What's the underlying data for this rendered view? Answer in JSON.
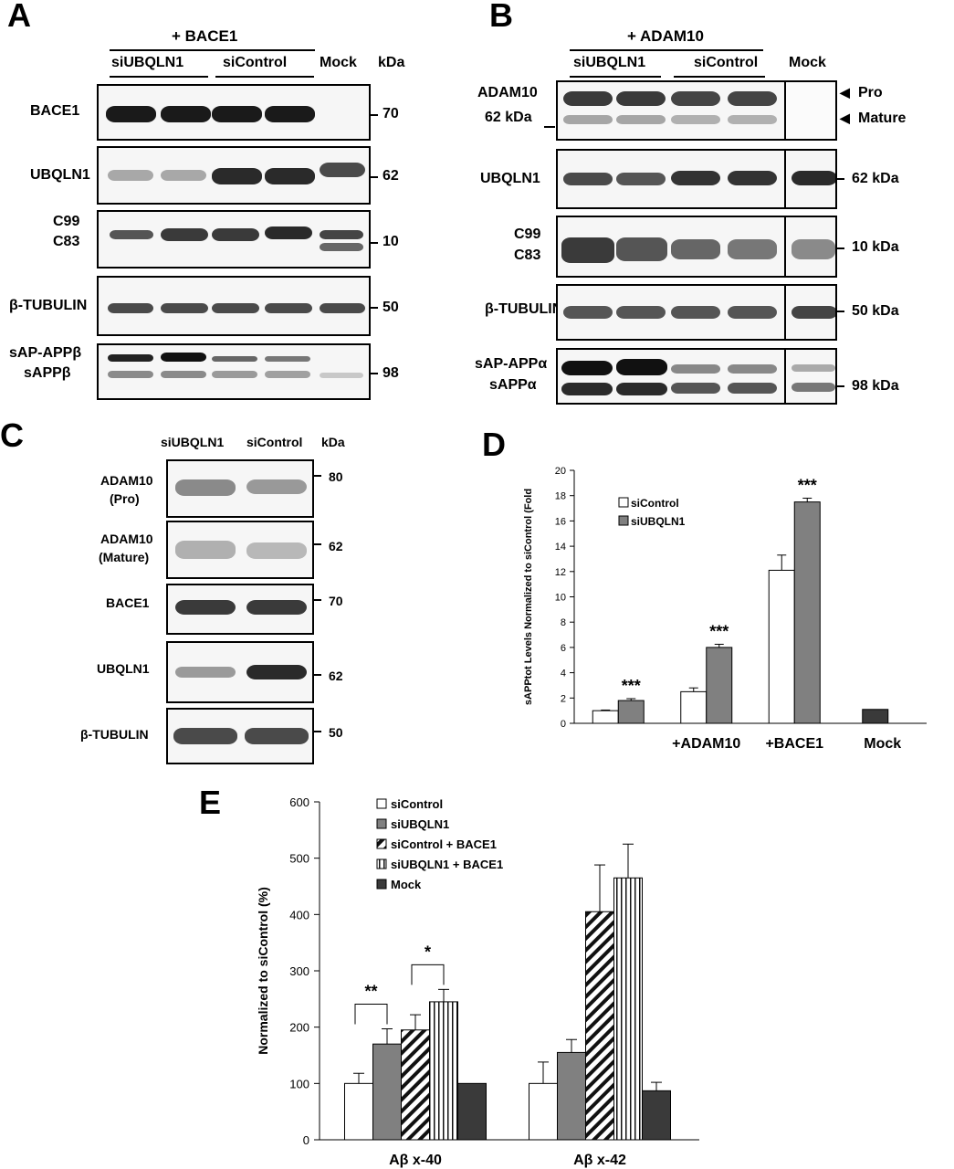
{
  "panel_letters": [
    "A",
    "B",
    "C",
    "D",
    "E"
  ],
  "panel_a": {
    "condition": "+ BACE1",
    "groups": [
      "siUBQLN1",
      "siControl",
      "Mock"
    ],
    "unit": "kDa",
    "rows": [
      {
        "label": "BACE1",
        "marker": "70"
      },
      {
        "label": "UBQLN1",
        "marker": "62"
      },
      {
        "label": "C99",
        "label2": "C83",
        "marker": "10"
      },
      {
        "label": "β-TUBULIN",
        "marker": "50"
      },
      {
        "label": "sAP-APPβ",
        "label2": "sAPPβ",
        "marker": "98"
      }
    ]
  },
  "panel_b": {
    "condition": "+ ADAM10",
    "groups": [
      "siUBQLN1",
      "siControl",
      "Mock"
    ],
    "rows": [
      {
        "label": "ADAM10",
        "label2": "62 kDa",
        "arrow1": "Pro",
        "arrow2": "Mature"
      },
      {
        "label": "UBQLN1",
        "marker": "62 kDa"
      },
      {
        "label": "C99",
        "label2": "C83",
        "marker": "10 kDa"
      },
      {
        "label": "β-TUBULIN",
        "marker": "50 kDa"
      },
      {
        "label": "sAP-APPα",
        "label2": "sAPPα",
        "marker": "98 kDa"
      }
    ]
  },
  "panel_c": {
    "groups": [
      "siUBQLN1",
      "siControl"
    ],
    "unit": "kDa",
    "rows": [
      {
        "label": "ADAM10",
        "label2": "(Pro)",
        "marker": "80"
      },
      {
        "label": "ADAM10",
        "label2": "(Mature)",
        "marker": "62"
      },
      {
        "label": "BACE1",
        "marker": "70"
      },
      {
        "label": "UBQLN1",
        "marker": "62"
      },
      {
        "label": "β-TUBULIN",
        "marker": "50"
      }
    ]
  },
  "chart_data": [
    {
      "panel": "D",
      "type": "bar",
      "ylabel": "sAPPtot Levels Normalized to siControl (Fold",
      "ylim": [
        0,
        20
      ],
      "yticks": [
        "0",
        "2",
        "4",
        "6",
        "8",
        "10",
        "12",
        "14",
        "16",
        "18",
        "20"
      ],
      "categories": [
        "",
        "+ADAM10",
        "+BACE1",
        "Mock"
      ],
      "series": [
        {
          "name": "siControl",
          "values": [
            1.0,
            2.5,
            12.1,
            null
          ],
          "errors": [
            0.05,
            0.3,
            1.2,
            null
          ],
          "color": "#ffffff"
        },
        {
          "name": "siUBQLN1",
          "values": [
            1.8,
            6.0,
            17.5,
            null
          ],
          "errors": [
            0.15,
            0.25,
            0.3,
            null
          ],
          "color": "#808080"
        },
        {
          "name": "Mock",
          "values": [
            null,
            null,
            null,
            1.1
          ],
          "errors": [
            null,
            null,
            null,
            0
          ],
          "color": "#3a3a3a"
        }
      ],
      "annotations": [
        "***",
        "***",
        "***"
      ],
      "legend_position": "top-left"
    },
    {
      "panel": "E",
      "type": "bar",
      "ylabel": "Normalized to siControl (%)",
      "ylim": [
        0,
        600
      ],
      "yticks": [
        "0",
        "100",
        "200",
        "300",
        "400",
        "500",
        "600"
      ],
      "categories": [
        "Aβ x-40",
        "Aβ x-42"
      ],
      "series": [
        {
          "name": "siControl",
          "values": [
            100,
            100
          ],
          "errors": [
            18,
            38
          ],
          "color": "#ffffff"
        },
        {
          "name": "siUBQLN1",
          "values": [
            170,
            155
          ],
          "errors": [
            27,
            23
          ],
          "color": "#808080"
        },
        {
          "name": "siControl + BACE1",
          "values": [
            195,
            405
          ],
          "errors": [
            27,
            83
          ],
          "color": "#ffffff",
          "pattern": "diagonal"
        },
        {
          "name": "siUBQLN1 + BACE1",
          "values": [
            245,
            465
          ],
          "errors": [
            22,
            60
          ],
          "color": "#ffffff",
          "pattern": "vertical"
        },
        {
          "name": "Mock",
          "values": [
            100,
            87
          ],
          "errors": [
            0,
            15
          ],
          "color": "#3a3a3a"
        }
      ],
      "annotations": [
        "**",
        "*"
      ],
      "legend_position": "top-center"
    }
  ]
}
